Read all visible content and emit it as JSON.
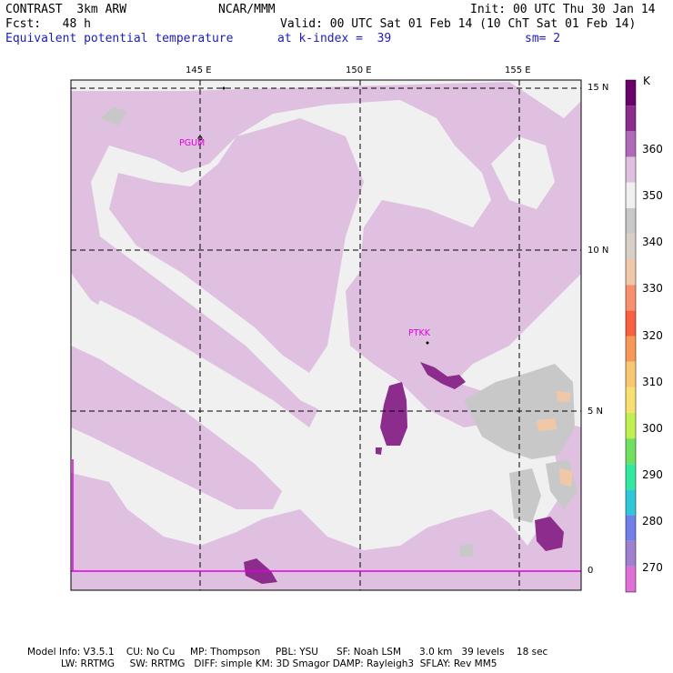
{
  "header": {
    "model": "CONTRAST  3km ARW",
    "org": "NCAR/MMM",
    "init": "Init: 00 UTC Thu 30 Jan 14",
    "fcst": "Fcst:   48 h",
    "valid": "Valid: 00 UTC Sat 01 Feb 14 (10 ChT Sat 01 Feb 14)",
    "field": "Equivalent potential temperature",
    "level": "at k-index =  39",
    "smooth": "sm= 2"
  },
  "axes": {
    "lon_labels": [
      "145 E",
      "150 E",
      "155 E"
    ],
    "lat_labels": [
      "15 N",
      "10 N",
      "5 N",
      "0"
    ]
  },
  "stations": [
    {
      "id": "PGUM"
    },
    {
      "id": "PTKK"
    }
  ],
  "colorbar": {
    "unit": "K",
    "levels": [
      "270",
      "280",
      "290",
      "300",
      "310",
      "320",
      "330",
      "340",
      "350",
      "360"
    ],
    "colors": [
      "#e070d8",
      "#a080d0",
      "#7080e8",
      "#30c8d8",
      "#30e8a0",
      "#70e060",
      "#c0f050",
      "#f8e070",
      "#f8c870",
      "#f89858",
      "#f86040",
      "#f89070",
      "#f0c8a8",
      "#d8d0c8",
      "#c8c8c8",
      "#f0f0f0",
      "#e0c0e0",
      "#b068b8",
      "#8c2c8c",
      "#6a006a"
    ]
  },
  "footer": {
    "line1": "Model Info: V3.5.1    CU: No Cu     MP: Thompson     PBL: YSU      SF: Noah LSM      3.0 km   39 levels    18 sec",
    "line2": "LW: RRTMG     SW: RRTMG   DIFF: simple KM: 3D Smagor DAMP: Rayleigh3  SFLAY: Rev MM5"
  }
}
